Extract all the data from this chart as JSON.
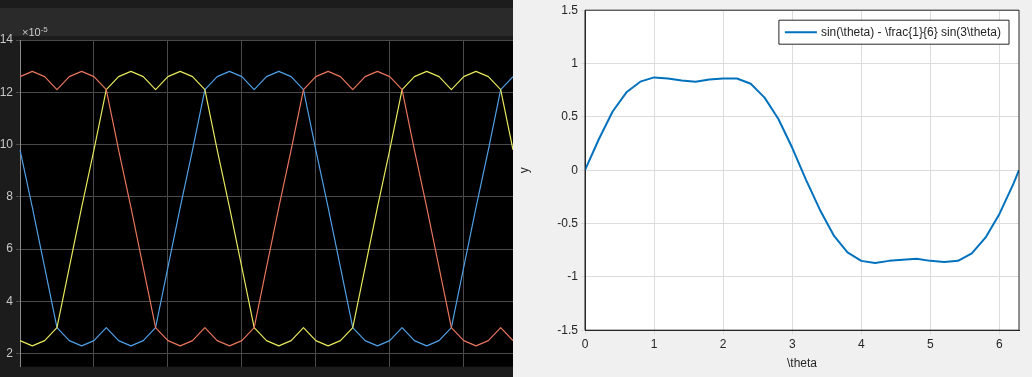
{
  "chart_data": [
    {
      "type": "line",
      "annotations": [
        "×10$^{-5}$"
      ],
      "categories": [
        null,
        null,
        null,
        null,
        null,
        null,
        null,
        null,
        null,
        null,
        null,
        null,
        null,
        null,
        null,
        null,
        null,
        null,
        null,
        null,
        null,
        null,
        null,
        null,
        null,
        null,
        null,
        null,
        null,
        null,
        null,
        null,
        null,
        null,
        null,
        null,
        null,
        null,
        null,
        null,
        null
      ],
      "series": [
        {
          "color": "#e8745c",
          "values": [
            12.6,
            12.8,
            12.6,
            12.1,
            12.6,
            12.8,
            12.6,
            12.1,
            9.8,
            7.6,
            5.3,
            3.0,
            2.5,
            2.3,
            2.5,
            3.0,
            2.5,
            2.3,
            2.5,
            3.0,
            5.3,
            7.6,
            9.8,
            12.1,
            12.6,
            12.8,
            12.6,
            12.1,
            12.6,
            12.8,
            12.6,
            12.1,
            9.8,
            7.6,
            5.3,
            3.0,
            2.5,
            2.3,
            2.5,
            3.0,
            2.5
          ]
        },
        {
          "color": "#e6e65c",
          "values": [
            2.5,
            2.3,
            2.5,
            3.0,
            5.3,
            7.6,
            9.8,
            12.1,
            12.6,
            12.8,
            12.6,
            12.1,
            12.6,
            12.8,
            12.6,
            12.1,
            9.8,
            7.6,
            5.3,
            3.0,
            2.5,
            2.3,
            2.5,
            3.0,
            2.5,
            2.3,
            2.5,
            3.0,
            5.3,
            7.6,
            9.8,
            12.1,
            12.6,
            12.8,
            12.6,
            12.1,
            12.6,
            12.8,
            12.6,
            12.1,
            9.8
          ]
        },
        {
          "color": "#4f9fe6",
          "values": [
            9.8,
            7.6,
            5.3,
            3.0,
            2.5,
            2.3,
            2.5,
            3.0,
            2.5,
            2.3,
            2.5,
            3.0,
            5.3,
            7.6,
            9.8,
            12.1,
            12.6,
            12.8,
            12.6,
            12.1,
            12.6,
            12.8,
            12.6,
            12.1,
            9.8,
            7.6,
            5.3,
            3.0,
            2.5,
            2.3,
            2.5,
            3.0,
            2.5,
            2.3,
            2.5,
            3.0,
            5.3,
            7.6,
            9.8,
            12.1,
            12.6
          ]
        }
      ],
      "ylim": [
        1.5,
        14
      ],
      "yticks": [
        2,
        4,
        6,
        8,
        10,
        12,
        14
      ],
      "grid": true,
      "legend": false,
      "tick_labels": "y"
    },
    {
      "type": "line",
      "xlabel": "\\theta",
      "ylabel": "y",
      "x": [
        0,
        0.2,
        0.4,
        0.6,
        0.8,
        1.0,
        1.2,
        1.4,
        1.6,
        1.8,
        2.0,
        2.2,
        2.4,
        2.6,
        2.8,
        3.0,
        3.2,
        3.4,
        3.6,
        3.8,
        4.0,
        4.2,
        4.4,
        4.6,
        4.8,
        5.0,
        5.2,
        5.4,
        5.6,
        5.8,
        6.0,
        6.2,
        6.2832
      ],
      "series": [
        {
          "name": "sin(\\theta) - \\frac{1}{6} sin(3\\theta)",
          "color": "#0072bd",
          "values": [
            0,
            0.29,
            0.55,
            0.73,
            0.83,
            0.87,
            0.86,
            0.84,
            0.83,
            0.85,
            0.86,
            0.86,
            0.81,
            0.68,
            0.48,
            0.21,
            -0.09,
            -0.37,
            -0.61,
            -0.77,
            -0.85,
            -0.87,
            -0.85,
            -0.84,
            -0.83,
            -0.85,
            -0.86,
            -0.85,
            -0.78,
            -0.63,
            -0.41,
            -0.13,
            0
          ]
        }
      ],
      "xlim": [
        0,
        6.2832
      ],
      "xticks": [
        0,
        1,
        2,
        3,
        4,
        5,
        6
      ],
      "ylim": [
        -1.5,
        1.5
      ],
      "yticks": [
        -1.5,
        -1,
        -0.5,
        0,
        0.5,
        1,
        1.5
      ],
      "grid": true,
      "legend": "top right"
    }
  ]
}
